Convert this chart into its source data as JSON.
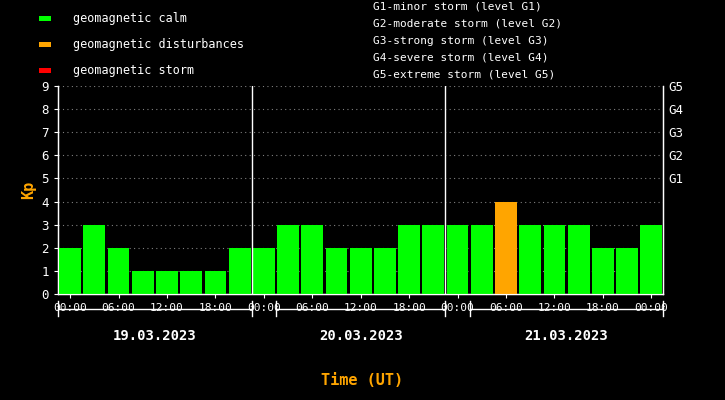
{
  "kp_values": [
    2,
    3,
    2,
    1,
    1,
    1,
    1,
    2,
    2,
    3,
    3,
    2,
    2,
    2,
    3,
    3,
    3,
    3,
    4,
    3,
    3,
    3,
    2,
    2,
    3
  ],
  "bar_colors": [
    "#00ff00",
    "#00ff00",
    "#00ff00",
    "#00ff00",
    "#00ff00",
    "#00ff00",
    "#00ff00",
    "#00ff00",
    "#00ff00",
    "#00ff00",
    "#00ff00",
    "#00ff00",
    "#00ff00",
    "#00ff00",
    "#00ff00",
    "#00ff00",
    "#00ff00",
    "#00ff00",
    "#ffa500",
    "#00ff00",
    "#00ff00",
    "#00ff00",
    "#00ff00",
    "#00ff00",
    "#00ff00"
  ],
  "bg_color": "#000000",
  "text_color": "#ffffff",
  "axis_color": "#ffffff",
  "ylabel": "Kp",
  "ylabel_color": "#ffa500",
  "xlabel": "Time (UT)",
  "xlabel_color": "#ffa500",
  "ylim": [
    0,
    9
  ],
  "yticks": [
    0,
    1,
    2,
    3,
    4,
    5,
    6,
    7,
    8,
    9
  ],
  "day_dividers": [
    8,
    16
  ],
  "xtick_labels": [
    "00:00",
    "06:00",
    "12:00",
    "18:00",
    "00:00",
    "06:00",
    "12:00",
    "18:00",
    "00:00",
    "06:00",
    "12:00",
    "18:00",
    "00:00"
  ],
  "right_axis_labels": [
    "G1",
    "G2",
    "G3",
    "G4",
    "G5"
  ],
  "right_axis_positions": [
    5,
    6,
    7,
    8,
    9
  ],
  "legend_items": [
    {
      "label": "geomagnetic calm",
      "color": "#00ff00"
    },
    {
      "label": "geomagnetic disturbances",
      "color": "#ffa500"
    },
    {
      "label": "geomagnetic storm",
      "color": "#ff0000"
    }
  ],
  "storm_legend_text": [
    "G1-minor storm (level G1)",
    "G2-moderate storm (level G2)",
    "G3-strong storm (level G3)",
    "G4-severe storm (level G4)",
    "G5-extreme storm (level G5)"
  ],
  "font_family": "monospace",
  "bar_width": 0.9,
  "font_size": 9
}
